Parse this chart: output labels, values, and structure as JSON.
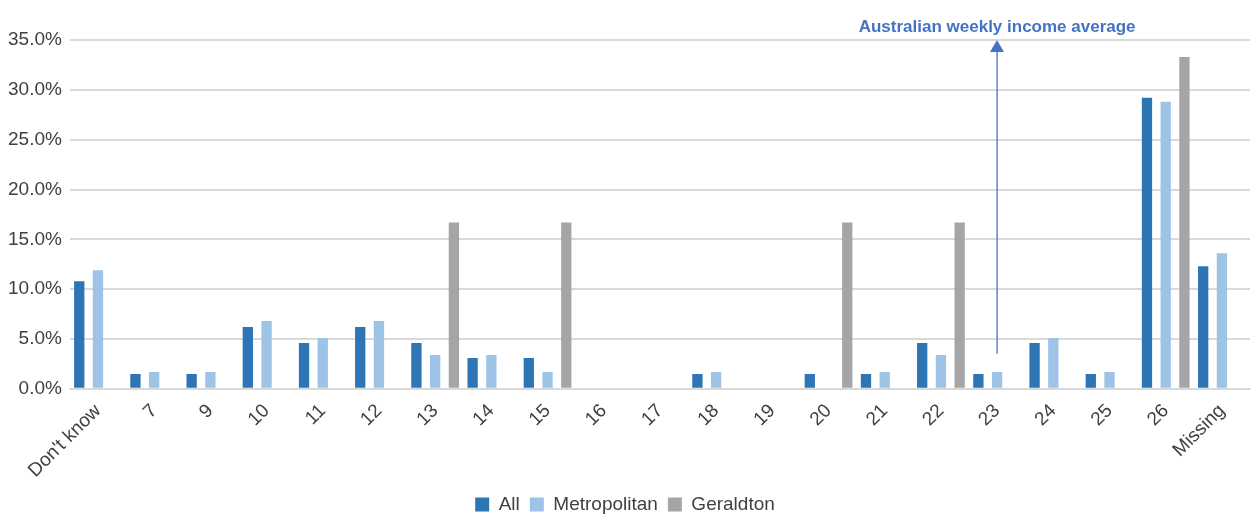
{
  "chart_data": {
    "type": "bar",
    "categories": [
      "Don't know",
      "7",
      "9",
      "10",
      "11",
      "12",
      "13",
      "14",
      "15",
      "16",
      "17",
      "18",
      "19",
      "20",
      "21",
      "22",
      "23",
      "24",
      "25",
      "26",
      "Missing"
    ],
    "series": [
      {
        "name": "All",
        "color": "#2e75b6",
        "values": [
          10.8,
          1.5,
          1.5,
          6.2,
          4.6,
          6.2,
          4.6,
          3.1,
          3.1,
          0,
          0,
          1.5,
          0,
          1.5,
          1.5,
          4.6,
          1.5,
          4.6,
          1.5,
          29.2,
          12.3
        ]
      },
      {
        "name": "Metropolitan",
        "color": "#9dc3e6",
        "values": [
          11.9,
          1.7,
          1.7,
          6.8,
          5.1,
          6.8,
          3.4,
          3.4,
          1.7,
          0,
          0,
          1.7,
          0,
          0,
          1.7,
          3.4,
          1.7,
          5.1,
          1.7,
          28.8,
          13.6
        ]
      },
      {
        "name": "Geraldton",
        "color": "#a5a5a5",
        "values": [
          0,
          0,
          0,
          0,
          0,
          0,
          16.7,
          0,
          16.7,
          0,
          0,
          0,
          0,
          16.7,
          0,
          16.7,
          0,
          0,
          0,
          33.3,
          0
        ]
      }
    ],
    "ylim": [
      0,
      35
    ],
    "yticks": [
      {
        "value": 0,
        "label": "0.0%"
      },
      {
        "value": 5,
        "label": "5.0%"
      },
      {
        "value": 10,
        "label": "10.0%"
      },
      {
        "value": 15,
        "label": "15.0%"
      },
      {
        "value": 20,
        "label": "20.0%"
      },
      {
        "value": 25,
        "label": "25.0%"
      },
      {
        "value": 30,
        "label": "30.0%"
      },
      {
        "value": 35,
        "label": "35.0%"
      }
    ],
    "grid": "y",
    "legend": "bottom",
    "ref_lines": [
      {
        "axis": "x",
        "value": "23",
        "label": "Australian weekly income average",
        "color": "#4472c4"
      }
    ]
  }
}
